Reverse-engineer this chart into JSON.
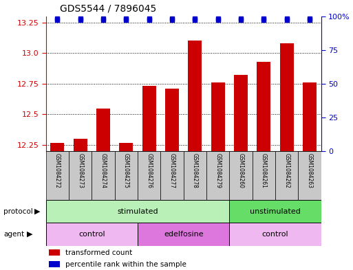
{
  "title": "GDS5544 / 7896045",
  "samples": [
    "GSM1084272",
    "GSM1084273",
    "GSM1084274",
    "GSM1084275",
    "GSM1084276",
    "GSM1084277",
    "GSM1084278",
    "GSM1084279",
    "GSM1084260",
    "GSM1084261",
    "GSM1084262",
    "GSM1084263"
  ],
  "bar_values": [
    12.27,
    12.3,
    12.55,
    12.27,
    12.73,
    12.71,
    13.1,
    12.76,
    12.82,
    12.93,
    13.08,
    12.76
  ],
  "percentile_values": [
    99,
    99,
    99,
    99,
    99,
    99,
    99,
    99,
    99,
    99,
    99,
    99
  ],
  "ylim_left": [
    12.2,
    13.3
  ],
  "ylim_right": [
    0,
    100
  ],
  "yticks_left": [
    12.25,
    12.5,
    12.75,
    13.0,
    13.25
  ],
  "yticks_right": [
    0,
    25,
    50,
    75,
    100
  ],
  "bar_color": "#cc0000",
  "percentile_color": "#0000cc",
  "grid_color": "#000000",
  "protocol_groups": [
    {
      "label": "stimulated",
      "start": 0,
      "end": 8,
      "color": "#b8f0b8"
    },
    {
      "label": "unstimulated",
      "start": 8,
      "end": 12,
      "color": "#66dd66"
    }
  ],
  "agent_groups": [
    {
      "label": "control",
      "start": 0,
      "end": 4,
      "color": "#f0b8f0"
    },
    {
      "label": "edelfosine",
      "start": 4,
      "end": 8,
      "color": "#dd77dd"
    },
    {
      "label": "control",
      "start": 8,
      "end": 12,
      "color": "#f0b8f0"
    }
  ],
  "legend_items": [
    {
      "label": "transformed count",
      "color": "#cc0000"
    },
    {
      "label": "percentile rank within the sample",
      "color": "#0000cc"
    }
  ],
  "sample_box_color": "#c8c8c8",
  "bar_width": 0.6
}
